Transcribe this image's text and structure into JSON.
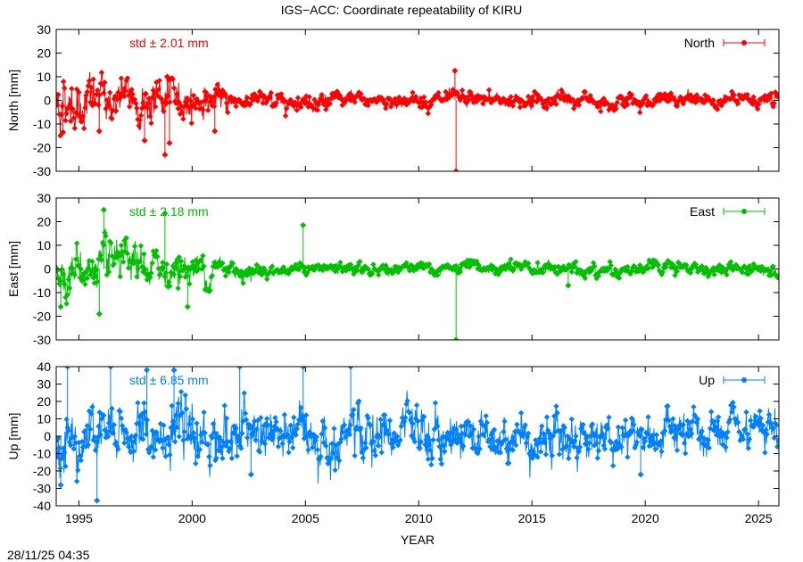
{
  "figure": {
    "title": "IGS−ACC: Coordinate repeatability of KIRU",
    "xlabel": "YEAR",
    "timestamp": "28/11/25 04:35"
  },
  "chart_data": [
    {
      "type": "scatter",
      "ylabel": "North [mm]",
      "xlim": [
        1994.0,
        2025.9
      ],
      "ylim": [
        -30,
        30
      ],
      "yticks": [
        -30,
        -20,
        -10,
        0,
        10,
        20,
        30
      ],
      "series": [
        {
          "name": "North",
          "color": "#ff0000"
        }
      ],
      "annotation": "std ± 2.01 mm",
      "std": 2.01,
      "noise_bands": [
        [
          1994.0,
          8.0
        ],
        [
          2000.0,
          5.0
        ],
        [
          2002.0,
          2.5
        ],
        [
          2010.0,
          2.0
        ],
        [
          2016.0,
          2.5
        ],
        [
          2018.0,
          2.0
        ],
        [
          2025.9,
          2.0
        ]
      ],
      "outliers": [
        {
          "x": 1994.3,
          "y": -13.5
        },
        {
          "x": 1995.9,
          "y": -13.0
        },
        {
          "x": 1997.9,
          "y": -17.0
        },
        {
          "x": 1998.8,
          "y": -23.0
        },
        {
          "x": 1999.0,
          "y": -18.0
        },
        {
          "x": 2001.0,
          "y": -13.0
        },
        {
          "x": 1998.9,
          "y": 10.0
        },
        {
          "x": 2011.6,
          "y": 12.5
        },
        {
          "x": 2011.65,
          "y": -30.0
        }
      ]
    },
    {
      "type": "scatter",
      "ylabel": "East [mm]",
      "xlim": [
        1994.0,
        2025.9
      ],
      "ylim": [
        -30,
        30
      ],
      "yticks": [
        -30,
        -20,
        -10,
        0,
        10,
        20,
        30
      ],
      "series": [
        {
          "name": "East",
          "color": "#00c000"
        }
      ],
      "annotation": "std ± 2.18 mm",
      "std": 2.18,
      "noise_bands": [
        [
          1994.0,
          7.0
        ],
        [
          2000.0,
          5.0
        ],
        [
          2002.0,
          3.0
        ],
        [
          2005.0,
          1.5
        ],
        [
          2016.0,
          2.0
        ],
        [
          2025.9,
          1.8
        ]
      ],
      "outliers": [
        {
          "x": 1994.2,
          "y": -16.0
        },
        {
          "x": 1995.9,
          "y": -19.0
        },
        {
          "x": 1996.1,
          "y": 25.0
        },
        {
          "x": 1998.8,
          "y": 23.5
        },
        {
          "x": 1999.8,
          "y": -16.0
        },
        {
          "x": 2004.9,
          "y": 18.5
        },
        {
          "x": 2011.65,
          "y": -30.0
        },
        {
          "x": 2016.6,
          "y": -7.0
        }
      ]
    },
    {
      "type": "scatter",
      "ylabel": "Up [mm]",
      "xlim": [
        1994.0,
        2025.9
      ],
      "ylim": [
        -40,
        40
      ],
      "yticks": [
        -40,
        -30,
        -20,
        -10,
        0,
        10,
        20,
        30,
        40
      ],
      "series": [
        {
          "name": "Up",
          "color": "#0080ff"
        }
      ],
      "annotation": "std ± 6.85 mm",
      "std": 6.85,
      "noise_bands": [
        [
          1994.0,
          12.0
        ],
        [
          2013.0,
          10.0
        ],
        [
          2025.9,
          8.0
        ]
      ],
      "outliers": [
        {
          "x": 1994.2,
          "y": -28.0
        },
        {
          "x": 1994.5,
          "y": 40.0
        },
        {
          "x": 1995.8,
          "y": -37.0
        },
        {
          "x": 1996.4,
          "y": 40.0
        },
        {
          "x": 1998.0,
          "y": 38.0
        },
        {
          "x": 1999.2,
          "y": 38.0
        },
        {
          "x": 2002.1,
          "y": 40.0
        },
        {
          "x": 2004.9,
          "y": 40.0
        },
        {
          "x": 2007.0,
          "y": 40.0
        },
        {
          "x": 2002.6,
          "y": -22.0
        },
        {
          "x": 2019.8,
          "y": -22.0
        }
      ]
    }
  ],
  "xticks": [
    1995,
    2000,
    2005,
    2010,
    2015,
    2020,
    2025
  ]
}
